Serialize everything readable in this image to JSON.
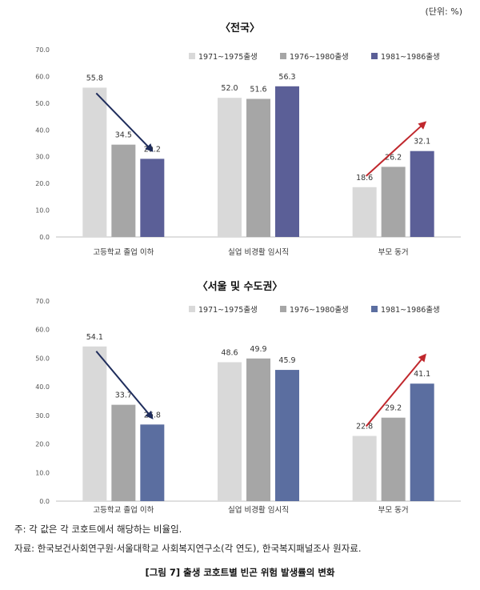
{
  "unit_label": "(단위: %)",
  "chart_data": [
    {
      "type": "bar",
      "title": "〈전국〉",
      "categories": [
        "고등학교 졸업 이하",
        "실업 비경활 임시직",
        "부모 동거"
      ],
      "ylim": [
        0,
        70
      ],
      "yticks": [
        "0.0",
        "10.0",
        "20.0",
        "30.0",
        "40.0",
        "50.0",
        "60.0",
        "70.0"
      ],
      "legend_position": "top-right",
      "series": [
        {
          "name": "1971~1975출생",
          "color": "#d9d9d9",
          "values": [
            55.8,
            52.0,
            18.6
          ]
        },
        {
          "name": "1976~1980출생",
          "color": "#a6a6a6",
          "values": [
            34.5,
            51.6,
            26.2
          ]
        },
        {
          "name": "1981~1986출생",
          "color": "#5b5f97",
          "values": [
            29.2,
            56.3,
            32.1
          ]
        }
      ]
    },
    {
      "type": "bar",
      "title": "〈서울 및 수도권〉",
      "categories": [
        "고등학교 졸업 이하",
        "실업 비경활 임시직",
        "부모 동거"
      ],
      "ylim": [
        0,
        70
      ],
      "yticks": [
        "0.0",
        "10.0",
        "20.0",
        "30.0",
        "40.0",
        "50.0",
        "60.0",
        "70.0"
      ],
      "legend_position": "top-right",
      "series": [
        {
          "name": "1971~1975출생",
          "color": "#d9d9d9",
          "values": [
            54.1,
            48.6,
            22.8
          ]
        },
        {
          "name": "1976~1980출생",
          "color": "#a6a6a6",
          "values": [
            33.7,
            49.9,
            29.2
          ]
        },
        {
          "name": "1981~1986출생",
          "color": "#5b6ea0",
          "values": [
            26.8,
            45.9,
            41.1
          ]
        }
      ]
    }
  ],
  "notes": {
    "note": "주: 각 값은 각 코호트에서 해당하는 비율임.",
    "source": "자료: 한국보건사회연구원·서울대학교 사회복지연구소(각 연도), 한국복지패널조사 원자료.",
    "caption": "[그림 7] 출생 코호트별 빈곤 위험 발생률의 변화"
  },
  "colors": {
    "arrow_down": "#1f2d5c",
    "arrow_up": "#c0282d"
  }
}
